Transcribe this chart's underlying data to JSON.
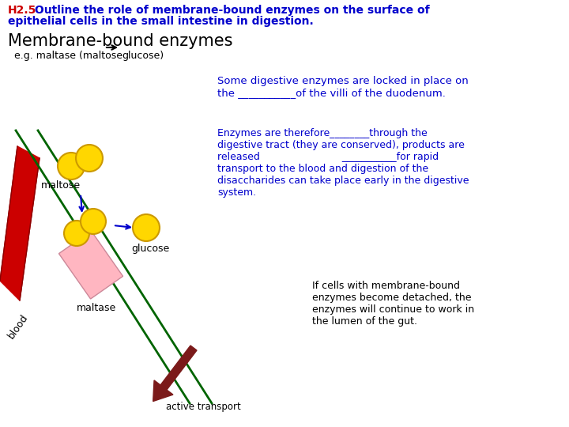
{
  "bg_color": "#ffffff",
  "title_red": "H2.5",
  "title_blue1": " Outline the role of membrane-bound enzymes on the surface of",
  "title_blue2": "epithelial cells in the small intestine in digestion.",
  "heading": "Membrane-bound enzymes",
  "sub1": "e.g. maltase (maltose ",
  "sub2": "glucose)",
  "text_block1_line1": "Some digestive enzymes are locked in place on",
  "text_block1_line2": "the ___________of the villi of the duodenum.",
  "tb2_l1": "Enzymes are therefore________through the",
  "tb2_l2": "digestive tract (they are conserved), products are",
  "tb2_l3": "released                          ___________for rapid",
  "tb2_l4": "transport to the blood and digestion of the",
  "tb2_l5": "disaccharides can take place early in the digestive",
  "tb2_l6": "system.",
  "tb3_l1": "If cells with membrane-bound",
  "tb3_l2": "enzymes become detached, the",
  "tb3_l3": "enzymes will continue to work in",
  "tb3_l4": "the lumen of the gut.",
  "label_maltose": "maltose",
  "label_glucose": "glucose",
  "label_maltase": "maltase",
  "label_blood": "blood",
  "label_active": "active transport",
  "blue": "#0000cc",
  "red": "#cc0000",
  "dark_red": "#7B1A1A",
  "yellow": "#FFD700",
  "yellow_edge": "#cc9900",
  "pink": "#FFB6C1",
  "pink_edge": "#cc8899",
  "green": "#006400"
}
